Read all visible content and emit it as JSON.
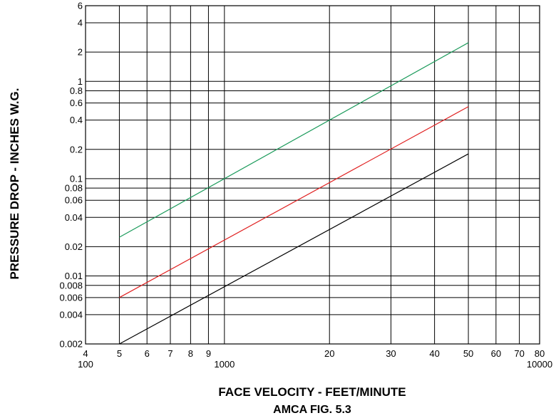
{
  "chart_data": {
    "type": "line",
    "title": "",
    "caption": "AMCA FIG. 5.3",
    "xlabel": "FACE VELOCITY - FEET/MINUTE",
    "ylabel": "PRESSURE DROP - INCHES W.G.",
    "x_scale": "log",
    "y_scale": "log",
    "xlim": [
      400,
      8000
    ],
    "ylim": [
      0.002,
      6
    ],
    "grid": true,
    "legend": "none",
    "x_ticks": [
      {
        "value": 400,
        "label": "4",
        "sublabel": "100"
      },
      {
        "value": 500,
        "label": "5"
      },
      {
        "value": 600,
        "label": "6"
      },
      {
        "value": 700,
        "label": "7"
      },
      {
        "value": 800,
        "label": "8"
      },
      {
        "value": 900,
        "label": "9"
      },
      {
        "value": 1000,
        "label": "",
        "sublabel": "1000"
      },
      {
        "value": 2000,
        "label": "20"
      },
      {
        "value": 3000,
        "label": "30"
      },
      {
        "value": 4000,
        "label": "40"
      },
      {
        "value": 5000,
        "label": "50"
      },
      {
        "value": 6000,
        "label": "60"
      },
      {
        "value": 7000,
        "label": "70"
      },
      {
        "value": 8000,
        "label": "80",
        "sublabel": "10000"
      }
    ],
    "y_ticks": [
      {
        "value": 0.002,
        "label": "0.002"
      },
      {
        "value": 0.004,
        "label": "0.004"
      },
      {
        "value": 0.006,
        "label": "0.006"
      },
      {
        "value": 0.008,
        "label": "0.008"
      },
      {
        "value": 0.01,
        "label": "0.01"
      },
      {
        "value": 0.02,
        "label": "0.02"
      },
      {
        "value": 0.04,
        "label": "0.04"
      },
      {
        "value": 0.06,
        "label": "0.06"
      },
      {
        "value": 0.08,
        "label": "0.08"
      },
      {
        "value": 0.1,
        "label": "0.1"
      },
      {
        "value": 0.2,
        "label": "0.2"
      },
      {
        "value": 0.4,
        "label": "0.4"
      },
      {
        "value": 0.6,
        "label": "0.6"
      },
      {
        "value": 0.8,
        "label": "0.8"
      },
      {
        "value": 1,
        "label": "1"
      },
      {
        "value": 2,
        "label": "2"
      },
      {
        "value": 4,
        "label": "4"
      },
      {
        "value": 6,
        "label": "6"
      }
    ],
    "series": [
      {
        "color": "#1a9a5a",
        "x": [
          500,
          5000
        ],
        "y": [
          0.025,
          2.5
        ]
      },
      {
        "color": "#e02020",
        "x": [
          500,
          5000
        ],
        "y": [
          0.006,
          0.55
        ]
      },
      {
        "color": "#000000",
        "x": [
          500,
          5000
        ],
        "y": [
          0.002,
          0.18
        ]
      }
    ]
  }
}
